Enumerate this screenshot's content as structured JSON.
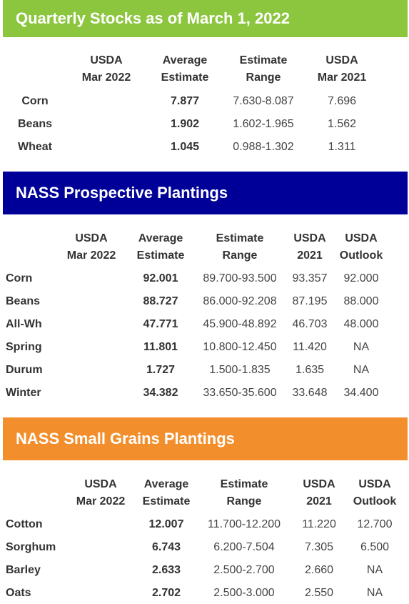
{
  "sections": [
    {
      "title": "Quarterly Stocks as of March 1, 2022",
      "headers": [
        [
          "USDA",
          "Mar 2022"
        ],
        [
          "Average",
          "Estimate"
        ],
        [
          "Estimate",
          "Range"
        ],
        [
          "USDA",
          "Mar 2021"
        ]
      ],
      "rows": [
        [
          "Corn",
          "7.877",
          "7.630-8.087",
          "7.696"
        ],
        [
          "Beans",
          "1.902",
          "1.602-1.965",
          "1.562"
        ],
        [
          "Wheat",
          "1.045",
          "0.988-1.302",
          "1.311"
        ]
      ]
    },
    {
      "title": "NASS Prospective Plantings",
      "headers": [
        [
          "USDA",
          "Mar 2022"
        ],
        [
          "Average",
          "Estimate"
        ],
        [
          "Estimate",
          "Range"
        ],
        [
          "USDA",
          "2021"
        ],
        [
          "USDA",
          "Outlook"
        ]
      ],
      "rows": [
        [
          "Corn",
          "92.001",
          "89.700-93.500",
          "93.357",
          "92.000"
        ],
        [
          "Beans",
          "88.727",
          "86.000-92.208",
          "87.195",
          "88.000"
        ],
        [
          "All-Wh",
          "47.771",
          "45.900-48.892",
          "46.703",
          "48.000"
        ],
        [
          "Spring",
          "11.801",
          "10.800-12.450",
          "11.420",
          "NA"
        ],
        [
          "Durum",
          "1.727",
          "1.500-1.835",
          "1.635",
          "NA"
        ],
        [
          "Winter",
          "34.382",
          "33.650-35.600",
          "33.648",
          "34.400"
        ]
      ]
    },
    {
      "title": "NASS Small Grains Plantings",
      "headers": [
        [
          "USDA",
          "Mar 2022"
        ],
        [
          "Average",
          "Estimate"
        ],
        [
          "Estimate",
          "Range"
        ],
        [
          "USDA",
          "2021"
        ],
        [
          "USDA",
          "Outlook"
        ]
      ],
      "rows": [
        [
          "Cotton",
          "12.007",
          "11.700-12.200",
          "11.220",
          "12.700"
        ],
        [
          "Sorghum",
          "6.743",
          "6.200-7.504",
          "7.305",
          "6.500"
        ],
        [
          "Barley",
          "2.633",
          "2.500-2.700",
          "2.660",
          "NA"
        ],
        [
          "Oats",
          "2.702",
          "2.500-3.000",
          "2.550",
          "NA"
        ]
      ]
    }
  ]
}
